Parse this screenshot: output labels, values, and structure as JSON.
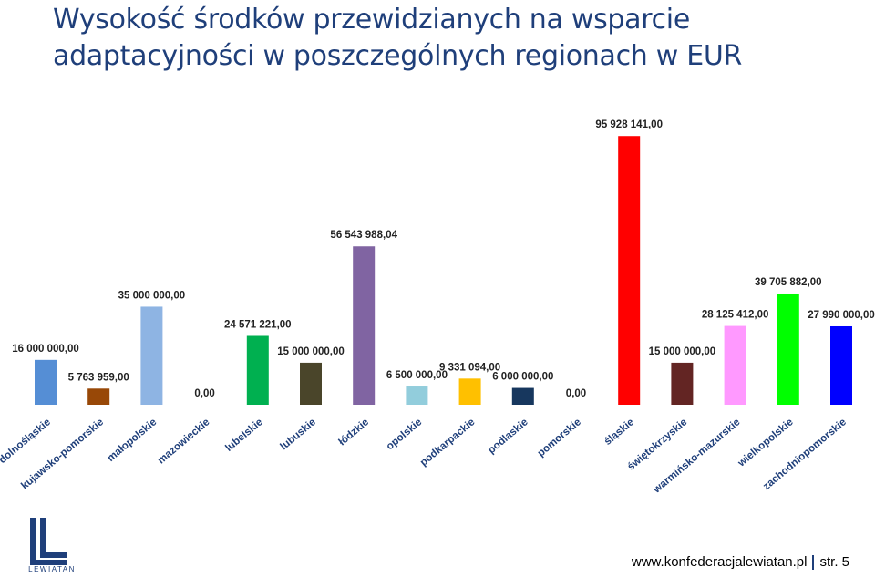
{
  "slide": {
    "title": "Wysokość środków przewidzianych na wsparcie adaptacyjności w poszczególnych regionach w EUR",
    "footer_url": "www.konfederacjalewiatan.pl",
    "footer_page": "str. 5",
    "logo_text": "LEWIATAN",
    "brand_color": "#1f3f7a"
  },
  "chart_data": {
    "type": "bar",
    "categories": [
      "dolnośląskie",
      "kujawsko-pomorskie",
      "małopolskie",
      "mazowieckie",
      "lubelskie",
      "lubuskie",
      "łódzkie",
      "opolskie",
      "podkarpackie",
      "podlaskie",
      "pomorskie",
      "śląskie",
      "świętokrzyskie",
      "warmińsko-mazurskie",
      "wielkopolskie",
      "zachodniopomorskie"
    ],
    "values": [
      16000000,
      5763959,
      35000000,
      0,
      24571221,
      15000000,
      56543988.04,
      6500000,
      9331094,
      6000000,
      0,
      95928141,
      15000000,
      28125412,
      39705882,
      27990000
    ],
    "data_labels": [
      "16 000 000,00",
      "5 763 959,00",
      "35 000 000,00",
      "0,00",
      "24 571 221,00",
      "15 000 000,00",
      "56 543 988,04",
      "6 500 000,00",
      "9 331 094,00",
      "6 000 000,00",
      "0,00",
      "95 928 141,00",
      "15 000 000,00",
      "28 125 412,00",
      "39 705 882,00",
      "27 990 000,00"
    ],
    "colors": [
      "#558ed5",
      "#984807",
      "#8eb4e3",
      "#ffffff",
      "#00b050",
      "#4a452a",
      "#8064a2",
      "#92cddc",
      "#ffc000",
      "#17375e",
      "#ffffff",
      "#ff0000",
      "#632523",
      "#ff99ff",
      "#00ff00",
      "#0000ff"
    ],
    "ylim": [
      0,
      96000000
    ],
    "xlabel": "",
    "ylabel": "",
    "legend": "none",
    "grid": false
  }
}
